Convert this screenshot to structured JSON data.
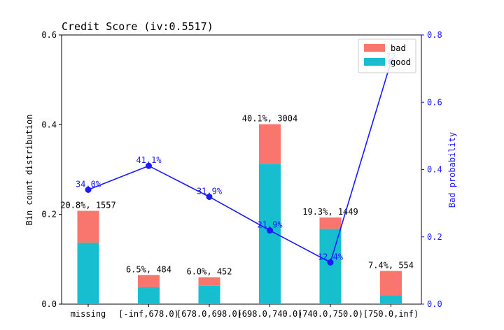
{
  "chart_data": {
    "type": "bar",
    "title": "Credit Score  (iv:0.5517)",
    "categories": [
      "missing",
      "[-inf,678.0)",
      "[678.0,698.0)",
      "[698.0,740.0)",
      "[740.0,750.0)",
      "[750.0,inf)"
    ],
    "series": [
      {
        "name": "good",
        "values": [
          0.137,
          0.038,
          0.041,
          0.313,
          0.168,
          0.02
        ]
      },
      {
        "name": "bad",
        "values": [
          0.071,
          0.027,
          0.019,
          0.088,
          0.025,
          0.054
        ]
      }
    ],
    "bar_labels": [
      "20.8%, 1557",
      "6.5%, 484",
      "6.0%, 452",
      "40.1%, 3004",
      "19.3%, 1449",
      "7.4%, 554"
    ],
    "line": {
      "name": "Bad probability",
      "values": [
        0.34,
        0.411,
        0.319,
        0.219,
        0.124,
        0.72
      ],
      "labels": [
        "34.0%",
        "41.1%",
        "31.9%",
        "21.9%",
        "12.4%",
        "72"
      ]
    },
    "ylabel": "Bin count distribution",
    "y2label": "Bad probability",
    "ylim": [
      0,
      0.6
    ],
    "y2lim": [
      0,
      0.8
    ],
    "yticks": [
      "0.0",
      "0.2",
      "0.4",
      "0.6"
    ],
    "y2ticks": [
      "0.0",
      "0.2",
      "0.4",
      "0.6",
      "0.8"
    ],
    "legend": {
      "position": "top-right",
      "entries": [
        "bad",
        "good"
      ]
    },
    "colors": {
      "good": "#17becf",
      "bad": "#f8766d",
      "line": "#1a1aff"
    }
  }
}
